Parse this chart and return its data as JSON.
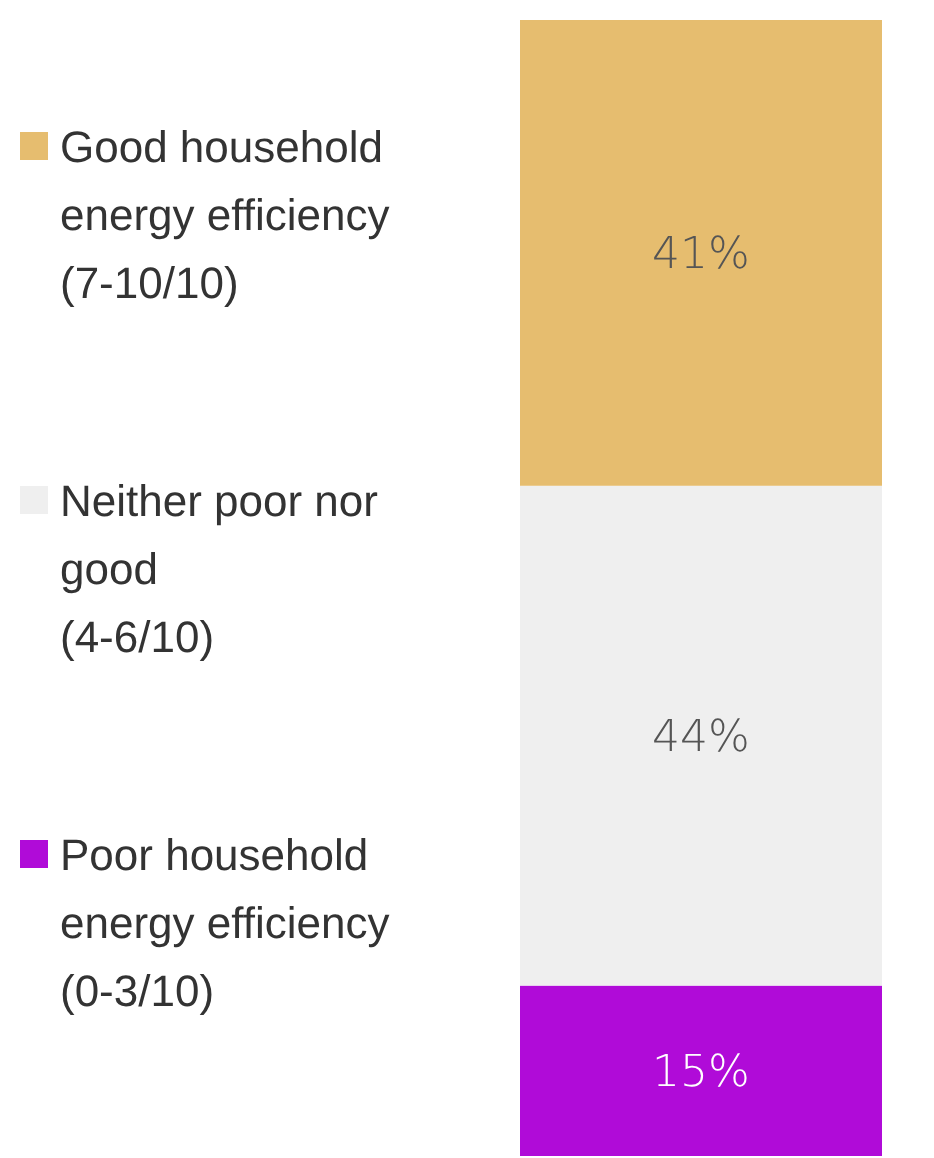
{
  "chart_data": {
    "type": "bar",
    "stacked": true,
    "categories": [
      null
    ],
    "ylim": [
      0,
      100
    ],
    "legend": "left",
    "series": [
      {
        "name": "Poor household energy efficiency (0-3/10)",
        "color": "#b00bd8",
        "values": [
          15
        ],
        "value_labels": [
          "15%"
        ]
      },
      {
        "name": "Neither poor nor good (4-6/10)",
        "color": "#efefef",
        "values": [
          44
        ],
        "value_labels": [
          "44%"
        ]
      },
      {
        "name": "Good household energy efficiency (7-10/10)",
        "color": "#e6bd6f",
        "values": [
          41
        ],
        "value_labels": [
          "41%"
        ]
      }
    ]
  }
}
